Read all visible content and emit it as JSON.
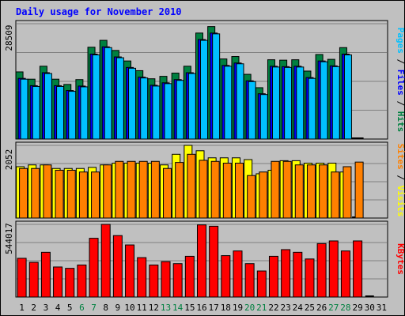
{
  "chart_data": {
    "type": "bar",
    "title": "Daily usage for November 2010",
    "categories": [
      "1",
      "2",
      "3",
      "4",
      "5",
      "6",
      "7",
      "8",
      "9",
      "10",
      "11",
      "12",
      "13",
      "14",
      "15",
      "16",
      "17",
      "18",
      "19",
      "20",
      "21",
      "22",
      "23",
      "24",
      "25",
      "26",
      "27",
      "28",
      "29",
      "30",
      "31"
    ],
    "weekend_days": [
      "6",
      "7",
      "13",
      "14",
      "20",
      "21",
      "27",
      "28"
    ],
    "panels": [
      {
        "id": "hits-files-pages",
        "max_label": "28509",
        "ylim": [
          0,
          28509
        ],
        "right_label_parts": [
          {
            "text": "Pages",
            "color": "#00c0ff"
          },
          {
            "text": " / ",
            "color": "#000000"
          },
          {
            "text": "Files",
            "color": "#0000ff"
          },
          {
            "text": " / ",
            "color": "#000000"
          },
          {
            "text": "Hits",
            "color": "#008040"
          }
        ],
        "series": [
          {
            "name": "Hits",
            "color": "#008040",
            "values": [
              16600,
              14800,
              18000,
              14800,
              13500,
              14700,
              22700,
              24400,
              21900,
              19300,
              16900,
              14900,
              15500,
              16300,
              18000,
              26200,
              27800,
              19800,
              20400,
              16000,
              12700,
              19600,
              19500,
              19600,
              16800,
              20900,
              19700,
              22600,
              0,
              null,
              null
            ]
          },
          {
            "name": "Files",
            "color": "#0000ff",
            "values": [
              15000,
              13200,
              16400,
              13200,
              12000,
              13100,
              21000,
              22800,
              20300,
              17700,
              15300,
              13300,
              13900,
              14700,
              16400,
              24600,
              26200,
              18200,
              18800,
              14400,
              11200,
              18000,
              17900,
              18000,
              15200,
              19300,
              18100,
              21000,
              0,
              null,
              null
            ]
          },
          {
            "name": "Pages",
            "color": "#00c0ff",
            "values": [
              14800,
              13000,
              16200,
              13000,
              11800,
              12900,
              20800,
              22600,
              20100,
              17500,
              15100,
              13100,
              13700,
              14500,
              16200,
              24400,
              26000,
              18000,
              18600,
              14200,
              11000,
              17800,
              17700,
              17800,
              15000,
              19100,
              17900,
              20800,
              0,
              null,
              null
            ]
          }
        ]
      },
      {
        "id": "visits-sites",
        "max_label": "2052",
        "ylim": [
          0,
          2052
        ],
        "right_label_parts": [
          {
            "text": "Sites",
            "color": "#ff8000"
          },
          {
            "text": " / ",
            "color": "#000000"
          },
          {
            "text": "Visits",
            "color": "#ffff00"
          }
        ],
        "series": [
          {
            "name": "Visits",
            "color": "#ffff00",
            "values": [
              1450,
              1500,
              1500,
              1400,
              1400,
              1400,
              1430,
              1500,
              1550,
              1550,
              1550,
              1550,
              1500,
              1800,
              2052,
              1900,
              1700,
              1700,
              1700,
              1650,
              1250,
              1350,
              1620,
              1620,
              1550,
              1550,
              1550,
              1300,
              0,
              null,
              null
            ]
          },
          {
            "name": "Sites",
            "color": "#ff8000",
            "values": [
              1400,
              1400,
              1500,
              1350,
              1350,
              1300,
              1300,
              1500,
              1600,
              1600,
              1600,
              1600,
              1400,
              1570,
              1800,
              1630,
              1600,
              1550,
              1550,
              1200,
              1300,
              1600,
              1600,
              1500,
              1500,
              1500,
              1300,
              1450,
              1580,
              null,
              null
            ]
          }
        ]
      },
      {
        "id": "kbytes",
        "max_label": "544017",
        "ylim": [
          0,
          544017
        ],
        "right_label_parts": [
          {
            "text": "KBytes",
            "color": "#ff0000"
          }
        ],
        "series": [
          {
            "name": "KBytes",
            "color": "#ff0000",
            "values": [
              290000,
              260000,
              335000,
              225000,
              215000,
              240000,
              440000,
              544017,
              460000,
              390000,
              295000,
              240000,
              265000,
              250000,
              305000,
              540000,
              530000,
              310000,
              345000,
              250000,
              195000,
              305000,
              355000,
              335000,
              285000,
              400000,
              420000,
              345000,
              420000,
              0,
              null
            ]
          }
        ]
      }
    ]
  }
}
